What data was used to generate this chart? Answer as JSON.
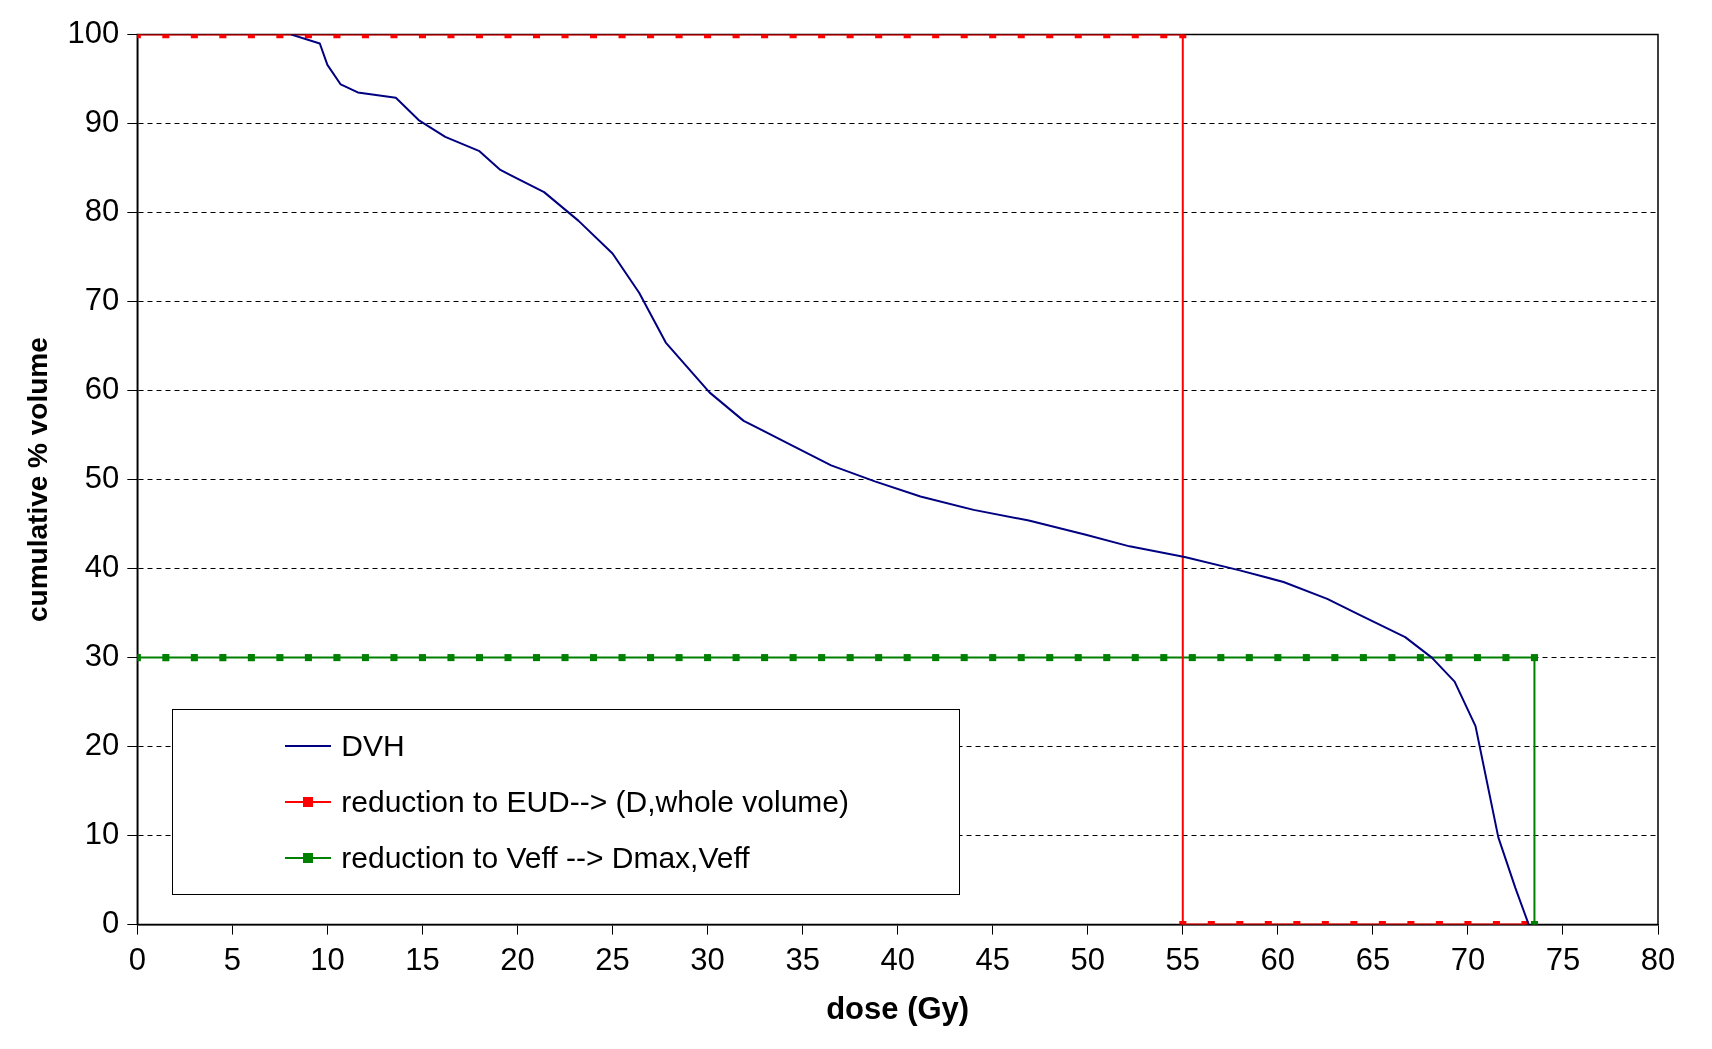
{
  "chart_data": {
    "type": "line",
    "xlabel": "dose (Gy)",
    "ylabel": "cumulative % volume",
    "xlim": [
      0,
      80
    ],
    "ylim": [
      0,
      100
    ],
    "xticks": [
      0,
      5,
      10,
      15,
      20,
      25,
      30,
      35,
      40,
      45,
      50,
      55,
      60,
      65,
      70,
      75,
      80
    ],
    "yticks": [
      0,
      10,
      20,
      30,
      40,
      50,
      60,
      70,
      80,
      90,
      100
    ],
    "grid": "y",
    "legend": "bottom left",
    "series": [
      {
        "name": "DVH",
        "color": "#000080",
        "marker": "none",
        "line_style": "solid",
        "x": [
          8.1,
          9.6,
          10,
          10.7,
          11.6,
          13.6,
          14.8,
          16.2,
          18,
          19.1,
          21.4,
          23.2,
          25,
          26.4,
          27.8,
          30.1,
          31.9,
          34.2,
          36.5,
          38.8,
          41.2,
          44,
          46.9,
          49.9,
          52.2,
          55.1,
          58,
          60.3,
          62.6,
          64.3,
          66.7,
          68.1,
          69.3,
          70.4,
          71.6,
          72.5,
          73.2
        ],
        "values": [
          100,
          99,
          96.6,
          94.4,
          93.5,
          92.9,
          90.4,
          88.5,
          86.9,
          84.8,
          82.3,
          79.1,
          75.4,
          71,
          65.4,
          59.8,
          56.6,
          54.1,
          51.6,
          49.8,
          48.1,
          46.6,
          45.4,
          43.8,
          42.5,
          41.3,
          39.8,
          38.5,
          36.6,
          34.8,
          32.3,
          30,
          27.3,
          22.3,
          9.8,
          4.1,
          0
        ]
      },
      {
        "name": "reduction to EUD--> (D,whole volume)",
        "color": "#ff0000",
        "marker": "square",
        "line_style": "solid",
        "x": [
          0,
          1.5,
          3,
          4.5,
          6,
          7.5,
          9,
          10.5,
          12,
          13.5,
          15,
          16.5,
          18,
          19.5,
          21,
          22.5,
          24,
          25.5,
          27,
          28.5,
          30,
          31.5,
          33,
          34.5,
          36,
          37.5,
          39,
          40.5,
          42,
          43.5,
          45,
          46.5,
          48,
          49.5,
          51,
          52.5,
          54,
          55,
          55,
          56.5,
          58,
          59.5,
          61,
          62.5,
          64,
          65.5,
          67,
          68.5,
          70,
          71.5,
          73
        ],
        "values": [
          100,
          100,
          100,
          100,
          100,
          100,
          100,
          100,
          100,
          100,
          100,
          100,
          100,
          100,
          100,
          100,
          100,
          100,
          100,
          100,
          100,
          100,
          100,
          100,
          100,
          100,
          100,
          100,
          100,
          100,
          100,
          100,
          100,
          100,
          100,
          100,
          100,
          100,
          0,
          0,
          0,
          0,
          0,
          0,
          0,
          0,
          0,
          0,
          0,
          0,
          0
        ]
      },
      {
        "name": "reduction to Veff --> Dmax,Veff",
        "color": "#008000",
        "marker": "square",
        "line_style": "solid",
        "x": [
          0,
          1.5,
          3,
          4.5,
          6,
          7.5,
          9,
          10.5,
          12,
          13.5,
          15,
          16.5,
          18,
          19.5,
          21,
          22.5,
          24,
          25.5,
          27,
          28.5,
          30,
          31.5,
          33,
          34.5,
          36,
          37.5,
          39,
          40.5,
          42,
          43.5,
          45,
          46.5,
          48,
          49.5,
          51,
          52.5,
          54,
          55.5,
          57,
          58.5,
          60,
          61.5,
          63,
          64.5,
          66,
          67.5,
          69,
          70.5,
          72,
          73.5,
          73.5
        ],
        "values": [
          30,
          30,
          30,
          30,
          30,
          30,
          30,
          30,
          30,
          30,
          30,
          30,
          30,
          30,
          30,
          30,
          30,
          30,
          30,
          30,
          30,
          30,
          30,
          30,
          30,
          30,
          30,
          30,
          30,
          30,
          30,
          30,
          30,
          30,
          30,
          30,
          30,
          30,
          30,
          30,
          30,
          30,
          30,
          30,
          30,
          30,
          30,
          30,
          30,
          30,
          0
        ]
      }
    ]
  }
}
